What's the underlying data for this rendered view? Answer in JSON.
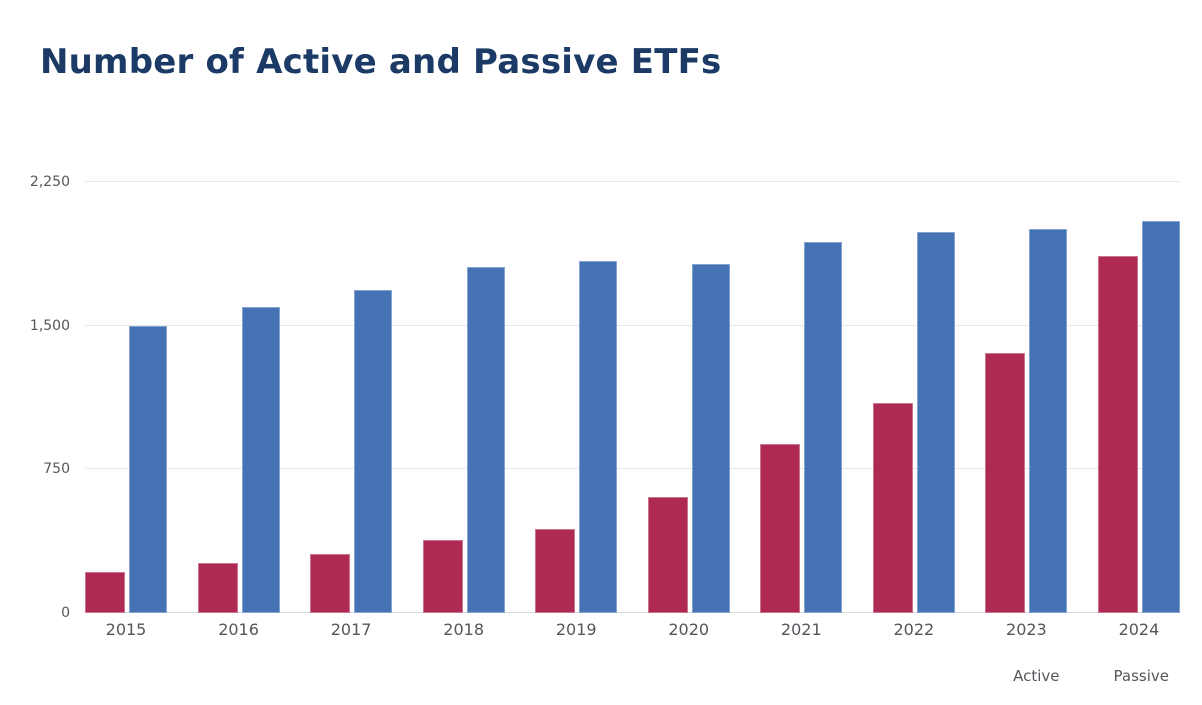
{
  "page": {
    "background": "#FFFFFF"
  },
  "colors": {
    "title": "#1B3A66",
    "axis_text": "#55565B",
    "gridline": "#E5E7EA",
    "axis_line": "#D9DBDE",
    "active": "#AE2A52",
    "passive": "#4472B5"
  },
  "chart_data": {
    "type": "bar",
    "title": "Number of Active and Passive ETFs",
    "categories": [
      "2015",
      "2016",
      "2017",
      "2018",
      "2019",
      "2020",
      "2021",
      "2022",
      "2023",
      "2024"
    ],
    "series": [
      {
        "name": "Active",
        "color": "#AE2A52",
        "values": [
          215,
          260,
          310,
          380,
          440,
          605,
          880,
          1095,
          1360,
          1865
        ]
      },
      {
        "name": "Passive",
        "color": "#4472B5",
        "values": [
          1500,
          1595,
          1685,
          1805,
          1840,
          1820,
          1935,
          1990,
          2005,
          2045
        ]
      }
    ],
    "xlabel": "",
    "ylabel": "",
    "ylim": [
      0,
      2250
    ],
    "yticks": [
      {
        "value": 0,
        "label": "0"
      },
      {
        "value": 750,
        "label": "750"
      },
      {
        "value": 1500,
        "label": "1,500"
      },
      {
        "value": 2250,
        "label": "2,250"
      }
    ],
    "grid": "horizontal",
    "legend_position": "bottom-right"
  }
}
